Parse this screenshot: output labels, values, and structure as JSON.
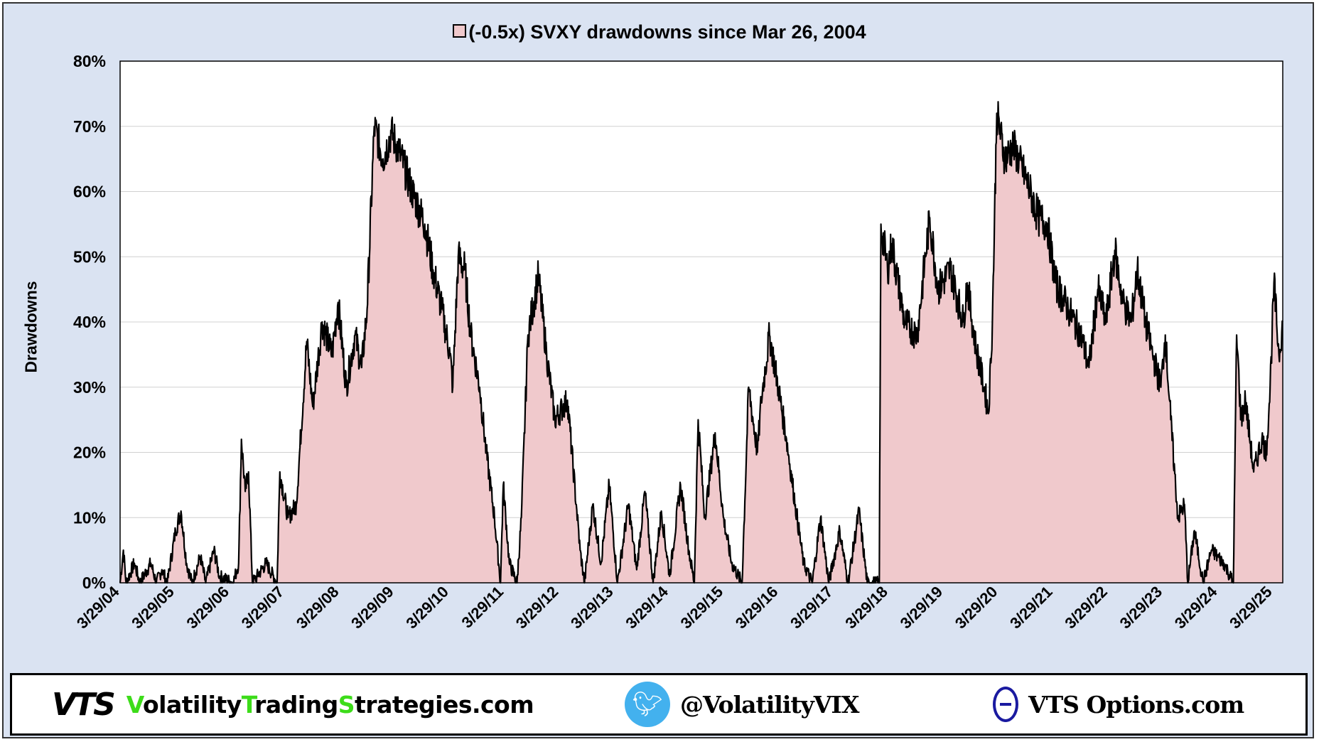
{
  "chart_data": {
    "type": "area",
    "title": "(-0.5x) SVXY drawdowns since Mar 26, 2004",
    "legend": "(-0.5x) SVXY drawdowns since Mar 26, 2004",
    "legend_placement": "top-center",
    "xlabel": "",
    "ylabel": "Drawdowns",
    "ylim": [
      0,
      80
    ],
    "xlim": [
      2004.24,
      2025.42
    ],
    "grid": true,
    "fill_color": "#f0c9cc",
    "line_color": "#000000",
    "yticks": [
      "0%",
      "10%",
      "20%",
      "30%",
      "40%",
      "50%",
      "60%",
      "70%",
      "80%"
    ],
    "xticks": [
      "3/29/04",
      "3/29/05",
      "3/29/06",
      "3/29/07",
      "3/29/08",
      "3/29/09",
      "3/29/10",
      "3/29/11",
      "3/29/12",
      "3/29/13",
      "3/29/14",
      "3/29/15",
      "3/29/16",
      "3/29/17",
      "3/29/18",
      "3/29/19",
      "3/29/20",
      "3/29/21",
      "3/29/22",
      "3/29/23",
      "3/29/24",
      "3/29/25"
    ],
    "series": [
      {
        "name": "(-0.5x) SVXY drawdowns",
        "x_unit": "decimal year",
        "points": [
          [
            2004.24,
            0
          ],
          [
            2004.3,
            5
          ],
          [
            2004.35,
            0
          ],
          [
            2004.5,
            3
          ],
          [
            2004.6,
            0
          ],
          [
            2004.8,
            3
          ],
          [
            2004.9,
            0
          ],
          [
            2005.0,
            2
          ],
          [
            2005.1,
            0
          ],
          [
            2005.25,
            8
          ],
          [
            2005.35,
            11
          ],
          [
            2005.45,
            3
          ],
          [
            2005.55,
            0
          ],
          [
            2005.7,
            4
          ],
          [
            2005.8,
            0
          ],
          [
            2005.95,
            5
          ],
          [
            2006.05,
            1
          ],
          [
            2006.3,
            0
          ],
          [
            2006.4,
            3
          ],
          [
            2006.45,
            22
          ],
          [
            2006.52,
            14
          ],
          [
            2006.58,
            17
          ],
          [
            2006.65,
            0
          ],
          [
            2006.9,
            3
          ],
          [
            2007.1,
            0
          ],
          [
            2007.15,
            17
          ],
          [
            2007.3,
            10
          ],
          [
            2007.45,
            12
          ],
          [
            2007.64,
            37
          ],
          [
            2007.75,
            27
          ],
          [
            2007.92,
            40
          ],
          [
            2008.1,
            35
          ],
          [
            2008.21,
            43
          ],
          [
            2008.36,
            30
          ],
          [
            2008.52,
            38
          ],
          [
            2008.64,
            33
          ],
          [
            2008.74,
            42
          ],
          [
            2008.87,
            70
          ],
          [
            2009.03,
            65
          ],
          [
            2009.18,
            69
          ],
          [
            2009.33,
            66
          ],
          [
            2009.56,
            60
          ],
          [
            2009.79,
            55
          ],
          [
            2009.94,
            48
          ],
          [
            2010.1,
            42
          ],
          [
            2010.25,
            35
          ],
          [
            2010.3,
            30
          ],
          [
            2010.4,
            50
          ],
          [
            2010.52,
            48
          ],
          [
            2010.63,
            38
          ],
          [
            2010.79,
            30
          ],
          [
            2010.91,
            20
          ],
          [
            2011.06,
            10
          ],
          [
            2011.17,
            0
          ],
          [
            2011.22,
            15
          ],
          [
            2011.33,
            3
          ],
          [
            2011.47,
            0
          ],
          [
            2011.55,
            10
          ],
          [
            2011.67,
            38
          ],
          [
            2011.86,
            47
          ],
          [
            2012.01,
            35
          ],
          [
            2012.16,
            25
          ],
          [
            2012.39,
            28
          ],
          [
            2012.55,
            12
          ],
          [
            2012.62,
            5
          ],
          [
            2012.7,
            0
          ],
          [
            2012.85,
            12
          ],
          [
            2013.0,
            3
          ],
          [
            2013.15,
            15
          ],
          [
            2013.3,
            0
          ],
          [
            2013.5,
            12
          ],
          [
            2013.65,
            2
          ],
          [
            2013.8,
            14
          ],
          [
            2013.95,
            0
          ],
          [
            2014.1,
            11
          ],
          [
            2014.25,
            1
          ],
          [
            2014.45,
            15
          ],
          [
            2014.6,
            5
          ],
          [
            2014.7,
            0
          ],
          [
            2014.77,
            25
          ],
          [
            2014.89,
            10
          ],
          [
            2015.08,
            23
          ],
          [
            2015.23,
            10
          ],
          [
            2015.38,
            3
          ],
          [
            2015.57,
            0
          ],
          [
            2015.69,
            30
          ],
          [
            2015.85,
            20
          ],
          [
            2015.92,
            28
          ],
          [
            2016.07,
            38
          ],
          [
            2016.23,
            30
          ],
          [
            2016.38,
            22
          ],
          [
            2016.54,
            12
          ],
          [
            2016.69,
            3
          ],
          [
            2016.85,
            0
          ],
          [
            2017.0,
            10
          ],
          [
            2017.15,
            0
          ],
          [
            2017.35,
            8
          ],
          [
            2017.5,
            0
          ],
          [
            2017.7,
            11
          ],
          [
            2017.85,
            0
          ],
          [
            2018.07,
            0
          ],
          [
            2018.1,
            55
          ],
          [
            2018.22,
            48
          ],
          [
            2018.3,
            52
          ],
          [
            2018.53,
            40
          ],
          [
            2018.76,
            38
          ],
          [
            2018.91,
            50
          ],
          [
            2018.99,
            56
          ],
          [
            2019.14,
            45
          ],
          [
            2019.37,
            48
          ],
          [
            2019.6,
            40
          ],
          [
            2019.67,
            46
          ],
          [
            2019.83,
            36
          ],
          [
            2019.98,
            30
          ],
          [
            2020.06,
            26
          ],
          [
            2020.13,
            40
          ],
          [
            2020.21,
            72
          ],
          [
            2020.36,
            65
          ],
          [
            2020.51,
            67
          ],
          [
            2020.74,
            62
          ],
          [
            2020.97,
            56
          ],
          [
            2021.13,
            55
          ],
          [
            2021.28,
            46
          ],
          [
            2021.51,
            42
          ],
          [
            2021.74,
            38
          ],
          [
            2021.89,
            33
          ],
          [
            2022.05,
            45
          ],
          [
            2022.2,
            40
          ],
          [
            2022.36,
            51
          ],
          [
            2022.51,
            43
          ],
          [
            2022.66,
            40
          ],
          [
            2022.77,
            48
          ],
          [
            2022.92,
            40
          ],
          [
            2023.05,
            35
          ],
          [
            2023.2,
            30
          ],
          [
            2023.28,
            38
          ],
          [
            2023.38,
            25
          ],
          [
            2023.51,
            10
          ],
          [
            2023.63,
            12
          ],
          [
            2023.69,
            0
          ],
          [
            2023.81,
            8
          ],
          [
            2023.97,
            0
          ],
          [
            2024.12,
            5
          ],
          [
            2024.35,
            3
          ],
          [
            2024.52,
            0
          ],
          [
            2024.58,
            38
          ],
          [
            2024.66,
            25
          ],
          [
            2024.74,
            28
          ],
          [
            2024.89,
            17
          ],
          [
            2025.04,
            22
          ],
          [
            2025.12,
            20
          ],
          [
            2025.19,
            30
          ],
          [
            2025.26,
            46
          ],
          [
            2025.35,
            35
          ],
          [
            2025.42,
            40
          ]
        ]
      }
    ]
  },
  "footer": {
    "logo_text": "VTS",
    "site_parts": [
      "V",
      "olatility",
      "T",
      "rading",
      "S",
      "trategies.com"
    ],
    "twitter_handle": "@VolatilityVIX",
    "options_site": "VTS Options.com",
    "accent_green": "#3ddc1a",
    "twitter_blue": "#43b1ee"
  }
}
